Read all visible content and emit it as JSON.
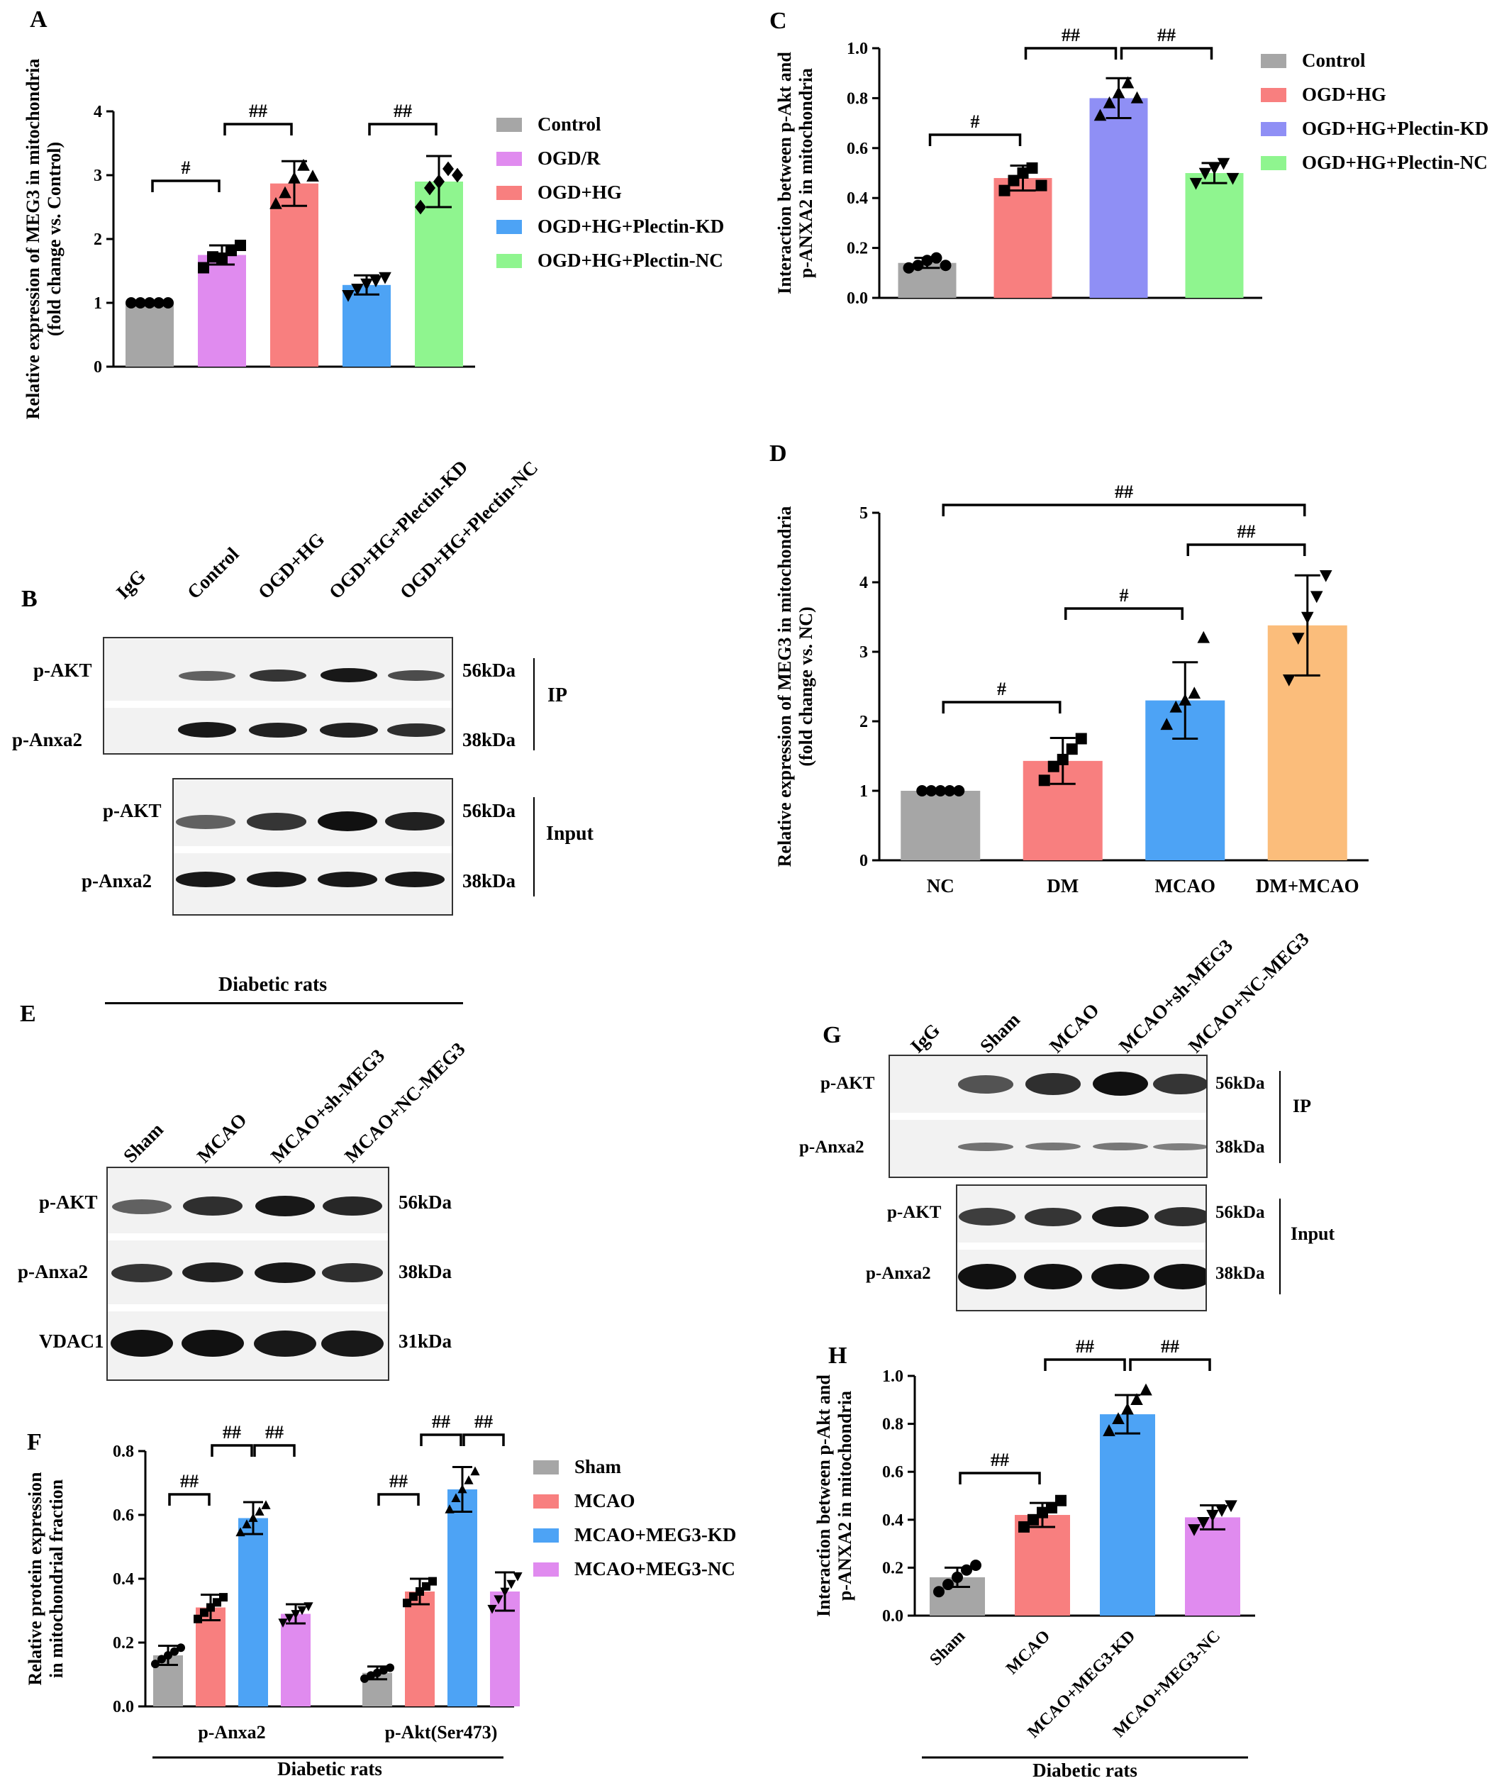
{
  "panels": {
    "A": {
      "letter": "A"
    },
    "B": {
      "letter": "B"
    },
    "C": {
      "letter": "C"
    },
    "D": {
      "letter": "D"
    },
    "E": {
      "letter": "E"
    },
    "F": {
      "letter": "F"
    },
    "G": {
      "letter": "G"
    },
    "H": {
      "letter": "H"
    }
  },
  "blotB": {
    "lanes": [
      "IgG",
      "Control",
      "OGD+HG",
      "OGD+HG+Plectin-KD",
      "OGD+HG+Plectin-NC"
    ],
    "rows": [
      "p-AKT",
      "p-Anxa2",
      "p-AKT",
      "p-Anxa2"
    ],
    "sizes": [
      "56kDa",
      "38kDa",
      "56kDa",
      "38kDa"
    ],
    "group_ip": "IP",
    "group_input": "Input"
  },
  "blotE": {
    "header": "Diabetic rats",
    "lanes": [
      "Sham",
      "MCAO",
      "MCAO+sh-MEG3",
      "MCAO+NC-MEG3"
    ],
    "rows": [
      "p-AKT",
      "p-Anxa2",
      "VDAC1"
    ],
    "sizes": [
      "56kDa",
      "38kDa",
      "31kDa"
    ]
  },
  "blotG": {
    "lanes": [
      "IgG",
      "Sham",
      "MCAO",
      "MCAO+sh-MEG3",
      "MCAO+NC-MEG3"
    ],
    "rows": [
      "p-AKT",
      "p-Anxa2",
      "p-AKT",
      "p-Anxa2"
    ],
    "sizes": [
      "56kDa",
      "38kDa",
      "56kDa",
      "38kDa"
    ],
    "group_ip": "IP",
    "group_input": "Input"
  },
  "chart_data": [
    {
      "panel": "A",
      "type": "bar",
      "ylabel": [
        "Relative expression of MEG3 in mitochondria",
        "(fold change vs. Control)"
      ],
      "ylim": [
        0,
        4
      ],
      "yticks": [
        "0",
        "1",
        "2",
        "3",
        "4"
      ],
      "categories": [
        "Control",
        "OGD/R",
        "OGD+HG",
        "OGD+HG+Plectin-KD",
        "OGD+HG+Plectin-NC"
      ],
      "values": [
        1.0,
        1.75,
        2.87,
        1.28,
        2.9
      ],
      "errors": [
        0,
        0.15,
        0.35,
        0.15,
        0.4
      ],
      "colors": [
        "#a6a6a6",
        "#e08bef",
        "#f87f7f",
        "#4da3f5",
        "#8ff58f"
      ],
      "points": [
        [
          1,
          1,
          1,
          1,
          1
        ],
        [
          1.55,
          1.72,
          1.7,
          1.82,
          1.9
        ],
        [
          2.55,
          2.72,
          2.95,
          3.15,
          2.98
        ],
        [
          1.12,
          1.22,
          1.3,
          1.35,
          1.4
        ],
        [
          2.5,
          2.8,
          2.9,
          3.1,
          3.0
        ]
      ],
      "markers": [
        "circle",
        "square",
        "triangle",
        "triangle-down",
        "diamond"
      ],
      "sig": [
        {
          "from": 0,
          "to": 1,
          "label": "#"
        },
        {
          "from": 1,
          "to": 2,
          "label": "##"
        },
        {
          "from": 3,
          "to": 4,
          "label": "##"
        }
      ],
      "legend": [
        "Control",
        "OGD/R",
        "OGD+HG",
        "OGD+HG+Plectin-KD",
        "OGD+HG+Plectin-NC"
      ]
    },
    {
      "panel": "C",
      "type": "bar",
      "ylabel": [
        "Interaction between p-Akt and",
        "p-ANXA2 in mitochondria"
      ],
      "ylim": [
        0,
        1.0
      ],
      "yticks": [
        "0.0",
        "0.2",
        "0.4",
        "0.6",
        "0.8",
        "1.0"
      ],
      "categories": [
        "Control",
        "OGD+HG",
        "OGD+HG+Plectin-KD",
        "OGD+HG+Plectin-NC"
      ],
      "values": [
        0.14,
        0.48,
        0.8,
        0.5
      ],
      "errors": [
        0.02,
        0.05,
        0.08,
        0.04
      ],
      "colors": [
        "#a6a6a6",
        "#f87f7f",
        "#8f8ff5",
        "#8ff58f"
      ],
      "points": [
        [
          0.12,
          0.13,
          0.15,
          0.16,
          0.13
        ],
        [
          0.43,
          0.47,
          0.5,
          0.52,
          0.45
        ],
        [
          0.73,
          0.78,
          0.82,
          0.86,
          0.8
        ],
        [
          0.46,
          0.5,
          0.52,
          0.54,
          0.48
        ]
      ],
      "markers": [
        "circle",
        "square",
        "triangle",
        "triangle-down"
      ],
      "sig": [
        {
          "from": 0,
          "to": 1,
          "label": "#"
        },
        {
          "from": 1,
          "to": 2,
          "label": "##"
        },
        {
          "from": 2,
          "to": 3,
          "label": "##"
        }
      ],
      "legend": [
        "Control",
        "OGD+HG",
        "OGD+HG+Plectin-KD",
        "OGD+HG+Plectin-NC"
      ]
    },
    {
      "panel": "D",
      "type": "bar",
      "ylabel": [
        "Relative expression of MEG3 in mitochondria",
        "(fold change vs. NC)"
      ],
      "ylim": [
        0,
        5
      ],
      "yticks": [
        "0",
        "1",
        "2",
        "3",
        "4",
        "5"
      ],
      "categories": [
        "NC",
        "DM",
        "MCAO",
        "DM+MCAO"
      ],
      "xticklabels": [
        "NC",
        "DM",
        "MCAO",
        "DM+MCAO"
      ],
      "values": [
        1.0,
        1.43,
        2.3,
        3.38
      ],
      "errors": [
        0,
        0.33,
        0.55,
        0.72
      ],
      "colors": [
        "#a6a6a6",
        "#f87f7f",
        "#4da3f5",
        "#fbbd7b"
      ],
      "points": [
        [
          1,
          1,
          1,
          1,
          1
        ],
        [
          1.15,
          1.35,
          1.45,
          1.6,
          1.75
        ],
        [
          1.95,
          2.2,
          2.3,
          2.4,
          3.2
        ],
        [
          2.6,
          3.2,
          3.5,
          3.8,
          4.1
        ]
      ],
      "markers": [
        "circle",
        "square",
        "triangle",
        "triangle-down"
      ],
      "sig": [
        {
          "from": 0,
          "to": 1,
          "label": "#"
        },
        {
          "from": 1,
          "to": 2,
          "label": "#"
        },
        {
          "from": 2,
          "to": 3,
          "label": "##"
        },
        {
          "from": 0,
          "to": 3,
          "label": "##"
        }
      ],
      "legend": []
    },
    {
      "panel": "F",
      "type": "bar",
      "ylabel": [
        "Relative protein expression",
        "in mitochondrial fraction"
      ],
      "ylim": [
        0,
        0.8
      ],
      "yticks": [
        "0.0",
        "0.2",
        "0.4",
        "0.6",
        "0.8"
      ],
      "groups": [
        "p-Anxa2",
        "p-Akt(Ser473)"
      ],
      "xlabel": "Diabetic rats",
      "series": [
        {
          "name": "Sham",
          "values": [
            0.16,
            0.105
          ],
          "errors": [
            0.03,
            0.02
          ]
        },
        {
          "name": "MCAO",
          "values": [
            0.31,
            0.36
          ],
          "errors": [
            0.04,
            0.04
          ]
        },
        {
          "name": "MCAO+MEG3-KD",
          "values": [
            0.59,
            0.68
          ],
          "errors": [
            0.05,
            0.07
          ]
        },
        {
          "name": "MCAO+MEG3-NC",
          "values": [
            0.29,
            0.36
          ],
          "errors": [
            0.03,
            0.06
          ]
        }
      ],
      "colors": [
        "#a6a6a6",
        "#f87f7f",
        "#4da3f5",
        "#e08bef"
      ],
      "sig": [
        {
          "group": 0,
          "from": 0,
          "to": 1,
          "label": "##"
        },
        {
          "group": 0,
          "from": 1,
          "to": 2,
          "label": "##"
        },
        {
          "group": 0,
          "from": 2,
          "to": 3,
          "label": "##"
        },
        {
          "group": 1,
          "from": 0,
          "to": 1,
          "label": "##"
        },
        {
          "group": 1,
          "from": 1,
          "to": 2,
          "label": "##"
        },
        {
          "group": 1,
          "from": 2,
          "to": 3,
          "label": "##"
        }
      ],
      "legend": [
        "Sham",
        "MCAO",
        "MCAO+MEG3-KD",
        "MCAO+MEG3-NC"
      ]
    },
    {
      "panel": "H",
      "type": "bar",
      "ylabel": [
        "Interaction between p-Akt and",
        "p-ANXA2 in mitochondria"
      ],
      "ylim": [
        0,
        1.0
      ],
      "yticks": [
        "0.0",
        "0.2",
        "0.4",
        "0.6",
        "0.8",
        "1.0"
      ],
      "categories": [
        "Sham",
        "MCAO",
        "MCAO+MEG3-KD",
        "MCAO+MEG3-NC"
      ],
      "xticklabels": [
        "Sham",
        "MCAO",
        "MCAO+MEG3-KD",
        "MCAO+MEG3-NC"
      ],
      "xlabel": "Diabetic rats",
      "values": [
        0.16,
        0.42,
        0.84,
        0.41
      ],
      "errors": [
        0.04,
        0.05,
        0.08,
        0.05
      ],
      "colors": [
        "#a6a6a6",
        "#f87f7f",
        "#4da3f5",
        "#e08bef"
      ],
      "points": [
        [
          0.1,
          0.13,
          0.16,
          0.19,
          0.21
        ],
        [
          0.37,
          0.4,
          0.43,
          0.45,
          0.48
        ],
        [
          0.77,
          0.82,
          0.86,
          0.9,
          0.94
        ],
        [
          0.36,
          0.39,
          0.42,
          0.44,
          0.46
        ]
      ],
      "markers": [
        "circle",
        "square",
        "triangle",
        "triangle-down"
      ],
      "sig": [
        {
          "from": 0,
          "to": 1,
          "label": "##"
        },
        {
          "from": 1,
          "to": 2,
          "label": "##"
        },
        {
          "from": 2,
          "to": 3,
          "label": "##"
        }
      ],
      "legend": []
    }
  ]
}
